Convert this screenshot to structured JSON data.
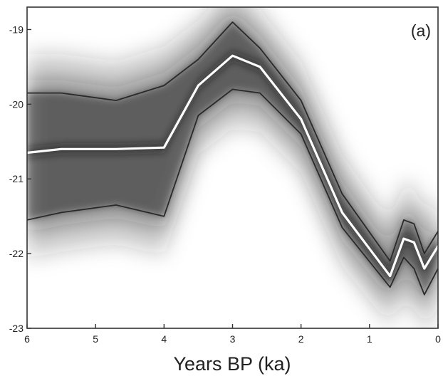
{
  "chart_data": {
    "type": "line",
    "panel_label": "(a)",
    "xlabel": "Years BP (ka)",
    "ylabel": "",
    "xlim": [
      6,
      0
    ],
    "ylim": [
      -23,
      -18.7
    ],
    "x_reversed": true,
    "xticks": [
      6,
      5,
      4,
      3,
      2,
      1,
      0
    ],
    "yticks": [
      -19,
      -20,
      -21,
      -22,
      -23
    ],
    "grid": false,
    "colors": {
      "median": "#ffffff",
      "bounds": "#2a2a2a",
      "density": "#1a1a1a",
      "frame": "#333333"
    },
    "series": [
      {
        "role": "median",
        "x": [
          6,
          5.5,
          4.7,
          4,
          3.5,
          3,
          2.6,
          2,
          1.4,
          0.7,
          0.5,
          0.35,
          0.2,
          0
        ],
        "y": [
          -20.65,
          -20.6,
          -20.6,
          -20.58,
          -19.75,
          -19.35,
          -19.5,
          -20.2,
          -21.45,
          -22.3,
          -21.8,
          -21.85,
          -22.2,
          -21.9
        ]
      },
      {
        "role": "upper-bound",
        "x": [
          6,
          5.5,
          4.7,
          4,
          3.5,
          3,
          2.6,
          2,
          1.4,
          0.7,
          0.5,
          0.35,
          0.2,
          0
        ],
        "y": [
          -19.85,
          -19.85,
          -19.95,
          -19.75,
          -19.4,
          -18.9,
          -19.25,
          -19.95,
          -21.2,
          -22.1,
          -21.55,
          -21.6,
          -22,
          -21.7
        ]
      },
      {
        "role": "lower-bound",
        "x": [
          6,
          5.5,
          4.7,
          4,
          3.5,
          3,
          2.6,
          2,
          1.4,
          0.7,
          0.5,
          0.35,
          0.2,
          0
        ],
        "y": [
          -21.55,
          -21.45,
          -21.35,
          -21.5,
          -20.15,
          -19.8,
          -19.85,
          -20.4,
          -21.65,
          -22.45,
          -22.05,
          -22.2,
          -22.55,
          -22.2
        ]
      }
    ]
  }
}
